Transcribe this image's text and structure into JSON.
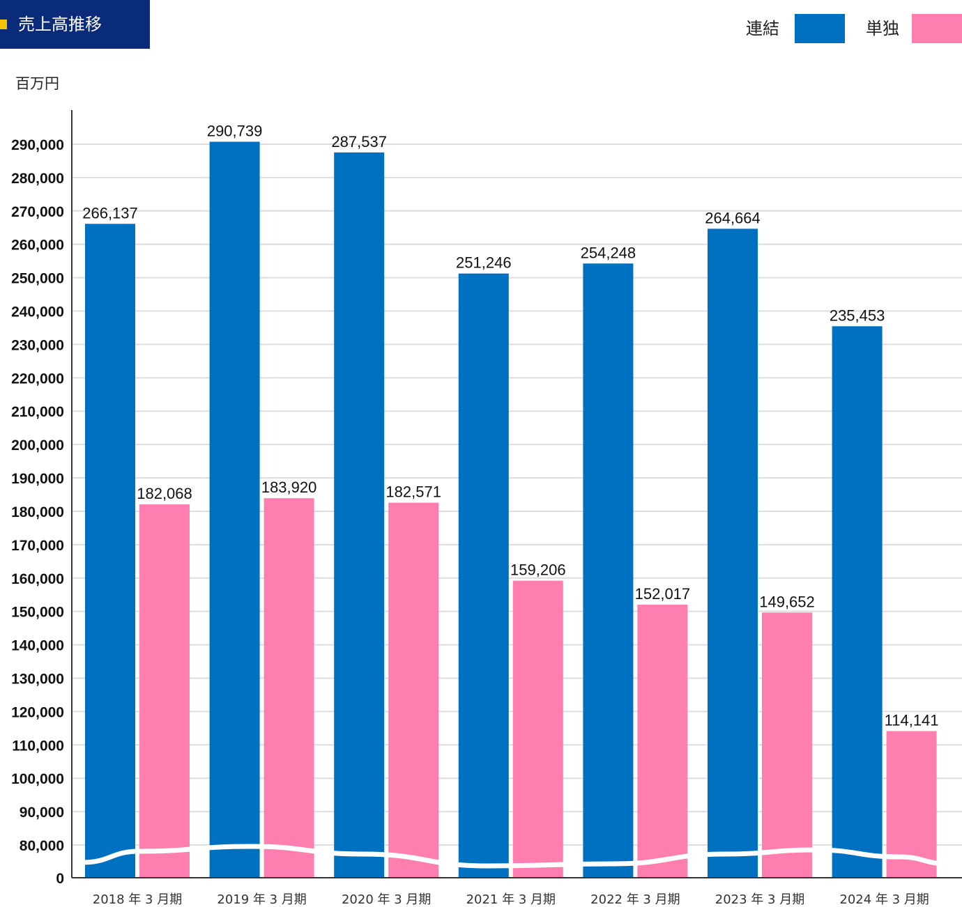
{
  "title": "売上高推移",
  "unit": "百万円",
  "colors": {
    "title_bg": "#0a2a7a",
    "title_marker": "#f5c400",
    "consolidated": "#0070c0",
    "standalone": "#ff7eb0",
    "grid": "#dddddd",
    "axis": "#333333"
  },
  "chart_data": {
    "type": "bar",
    "title": "売上高推移",
    "ylabel": "百万円",
    "categories": [
      "2018 年 3 月期",
      "2019 年 3 月期",
      "2020 年 3 月期",
      "2021 年 3 月期",
      "2022 年 3 月期",
      "2023 年 3 月期",
      "2024 年 3 月期"
    ],
    "series": [
      {
        "name": "連結",
        "color": "#0070c0",
        "values": [
          266137,
          290739,
          287537,
          251246,
          254248,
          264664,
          235453
        ],
        "labels": [
          "266,137",
          "290,739",
          "287,537",
          "251,246",
          "254,248",
          "264,664",
          "235,453"
        ]
      },
      {
        "name": "単独",
        "color": "#ff7eb0",
        "values": [
          182068,
          183920,
          182571,
          159206,
          152017,
          149652,
          114141
        ],
        "labels": [
          "182,068",
          "183,920",
          "182,571",
          "159,206",
          "152,017",
          "149,652",
          "114,141"
        ]
      }
    ],
    "yticks": [
      "0",
      "80,000",
      "90,000",
      "100,000",
      "110,000",
      "120,000",
      "130,000",
      "140,000",
      "150,000",
      "160,000",
      "170,000",
      "180,000",
      "190,000",
      "200,000",
      "210,000",
      "220,000",
      "230,000",
      "240,000",
      "250,000",
      "260,000",
      "270,000",
      "280,000",
      "290,000"
    ],
    "ylim": [
      0,
      290000
    ],
    "axis_break": true,
    "grid": true,
    "legend_position": "top-right"
  }
}
